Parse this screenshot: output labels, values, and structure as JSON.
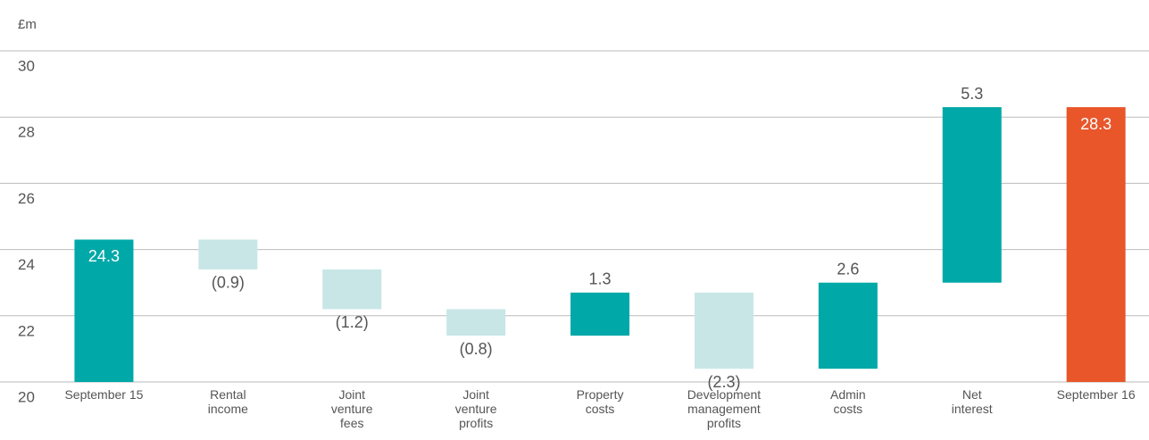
{
  "chart_data": {
    "type": "waterfall",
    "y_label": "£m",
    "categories": [
      [
        "September 15"
      ],
      [
        "Rental",
        "income"
      ],
      [
        "Joint",
        "venture",
        "fees"
      ],
      [
        "Joint",
        "venture",
        "profits"
      ],
      [
        "Property",
        "costs"
      ],
      [
        "Development",
        "management",
        "profits"
      ],
      [
        "Admin",
        "costs"
      ],
      [
        "Net",
        "interest"
      ],
      [
        "September 16"
      ]
    ],
    "values": [
      24.3,
      -0.9,
      -1.2,
      -0.8,
      1.3,
      -2.3,
      2.6,
      5.3,
      28.3
    ],
    "value_labels": [
      "24.3",
      "(0.9)",
      "(1.2)",
      "(0.8)",
      "1.3",
      "(2.3)",
      "2.6",
      "5.3",
      "28.3"
    ],
    "measure": [
      "absolute",
      "relative",
      "relative",
      "relative",
      "relative",
      "relative",
      "relative",
      "relative",
      "total"
    ],
    "colors": {
      "absolute": "#00a8a8",
      "increase": "#00a8a8",
      "decrease": "#c8e6e6",
      "total": "#e8562a"
    },
    "ylim": [
      20,
      30
    ],
    "yticks": [
      20,
      22,
      24,
      26,
      28,
      30
    ],
    "grid": true
  }
}
